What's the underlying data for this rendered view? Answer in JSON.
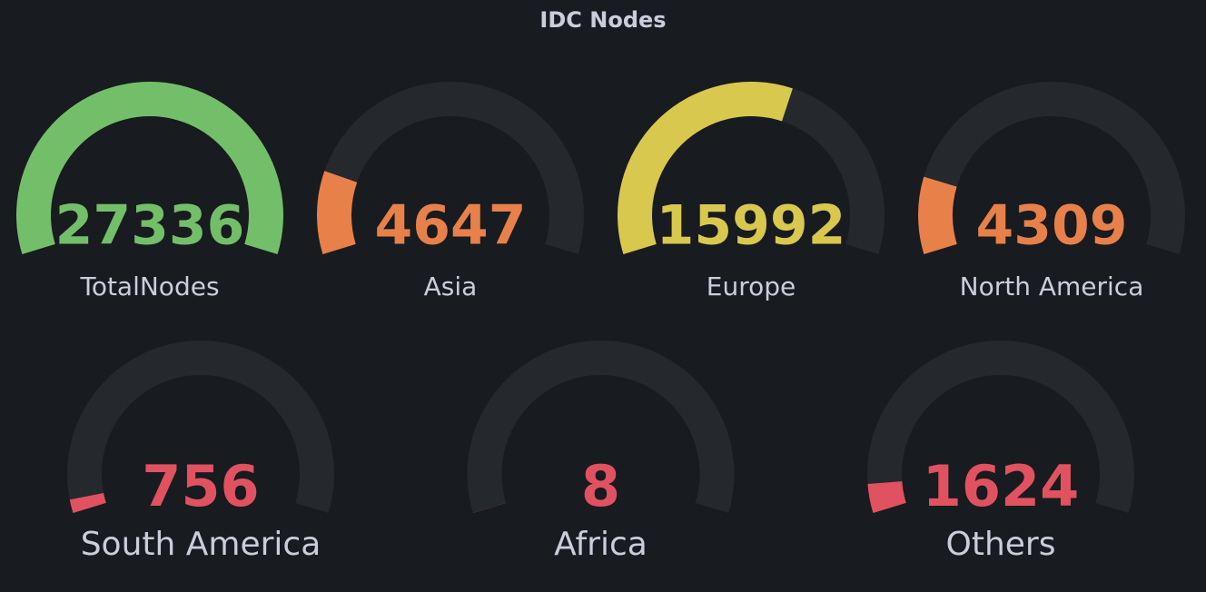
{
  "chart_data": {
    "type": "gauge",
    "title": "IDC Nodes",
    "range": [
      0,
      27336
    ],
    "track_color": "#25282d",
    "gauges": [
      {
        "name": "TotalNodes",
        "value": 27336,
        "color": "#73bf69"
      },
      {
        "name": "Asia",
        "value": 4647,
        "color": "#e8804a"
      },
      {
        "name": "Europe",
        "value": 15992,
        "color": "#d9c84e"
      },
      {
        "name": "North America",
        "value": 4309,
        "color": "#e8804a"
      },
      {
        "name": "South America",
        "value": 756,
        "color": "#e05260"
      },
      {
        "name": "Africa",
        "value": 8,
        "color": "#e05260"
      },
      {
        "name": "Others",
        "value": 1624,
        "color": "#e05260"
      }
    ]
  }
}
